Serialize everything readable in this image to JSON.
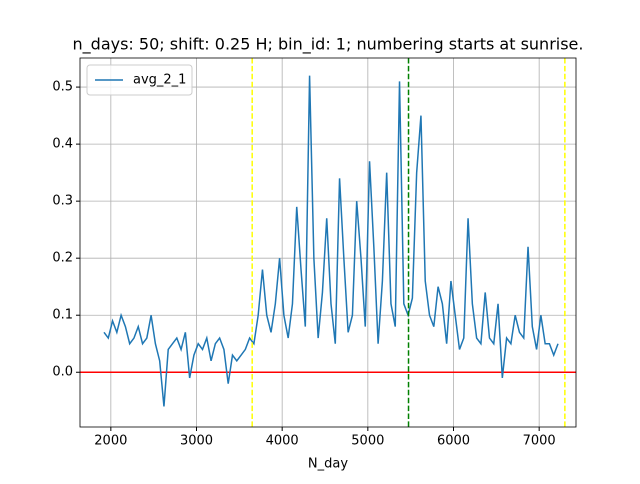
{
  "chart_data": {
    "type": "line",
    "title": "n_days: 50; shift: 0.25 H; bin_id: 1; numbering starts at sunrise.",
    "xlabel": "N_day",
    "x": [
      1920,
      1970,
      2020,
      2070,
      2120,
      2170,
      2220,
      2270,
      2320,
      2370,
      2420,
      2470,
      2520,
      2570,
      2620,
      2670,
      2720,
      2770,
      2820,
      2870,
      2920,
      2970,
      3020,
      3070,
      3120,
      3170,
      3220,
      3270,
      3320,
      3370,
      3420,
      3470,
      3520,
      3570,
      3620,
      3670,
      3720,
      3770,
      3820,
      3870,
      3920,
      3970,
      4020,
      4070,
      4120,
      4170,
      4220,
      4270,
      4320,
      4370,
      4420,
      4470,
      4520,
      4570,
      4620,
      4670,
      4720,
      4770,
      4820,
      4870,
      4920,
      4970,
      5020,
      5070,
      5120,
      5170,
      5220,
      5270,
      5320,
      5370,
      5420,
      5470,
      5520,
      5570,
      5620,
      5670,
      5720,
      5770,
      5820,
      5870,
      5920,
      5970,
      6020,
      6070,
      6120,
      6170,
      6220,
      6270,
      6320,
      6370,
      6420,
      6470,
      6520,
      6570,
      6620,
      6670,
      6720,
      6770,
      6820,
      6870,
      6920,
      6970,
      7020,
      7070,
      7120,
      7170,
      7220
    ],
    "series": [
      {
        "name": "avg_2_1",
        "color": "#1f77b4",
        "values": [
          0.07,
          0.06,
          0.09,
          0.07,
          0.1,
          0.08,
          0.05,
          0.06,
          0.08,
          0.05,
          0.06,
          0.1,
          0.05,
          0.02,
          -0.06,
          0.04,
          0.05,
          0.06,
          0.04,
          0.07,
          -0.01,
          0.03,
          0.05,
          0.04,
          0.06,
          0.02,
          0.05,
          0.06,
          0.04,
          -0.02,
          0.03,
          0.02,
          0.03,
          0.04,
          0.06,
          0.05,
          0.1,
          0.18,
          0.1,
          0.07,
          0.12,
          0.2,
          0.1,
          0.06,
          0.12,
          0.29,
          0.18,
          0.08,
          0.52,
          0.2,
          0.06,
          0.14,
          0.27,
          0.12,
          0.05,
          0.34,
          0.2,
          0.07,
          0.1,
          0.3,
          0.2,
          0.08,
          0.37,
          0.22,
          0.05,
          0.16,
          0.35,
          0.12,
          0.08,
          0.51,
          0.12,
          0.1,
          0.13,
          0.35,
          0.45,
          0.16,
          0.1,
          0.08,
          0.15,
          0.12,
          0.05,
          0.16,
          0.1,
          0.04,
          0.06,
          0.27,
          0.12,
          0.06,
          0.05,
          0.14,
          0.06,
          0.05,
          0.12,
          -0.01,
          0.06,
          0.05,
          0.1,
          0.07,
          0.06,
          0.22,
          0.08,
          0.04,
          0.1,
          0.05,
          0.05,
          0.03,
          0.05
        ]
      }
    ],
    "vlines": [
      {
        "value": 3650,
        "color": "#ffff00"
      },
      {
        "value": 5475,
        "color": "#008000"
      },
      {
        "value": 7300,
        "color": "#ffff00"
      }
    ],
    "hlines": [
      {
        "value": 0,
        "color": "#ff0000"
      }
    ],
    "xlim": [
      1640,
      7430
    ],
    "ylim": [
      -0.096,
      0.551
    ],
    "xticks": [
      2000,
      3000,
      4000,
      5000,
      6000,
      7000
    ],
    "yticks": [
      {
        "value": 0,
        "label": "0.0"
      },
      0.1,
      0.2,
      0.3,
      0.4,
      0.5
    ],
    "grid": true,
    "legend": "upper left"
  }
}
